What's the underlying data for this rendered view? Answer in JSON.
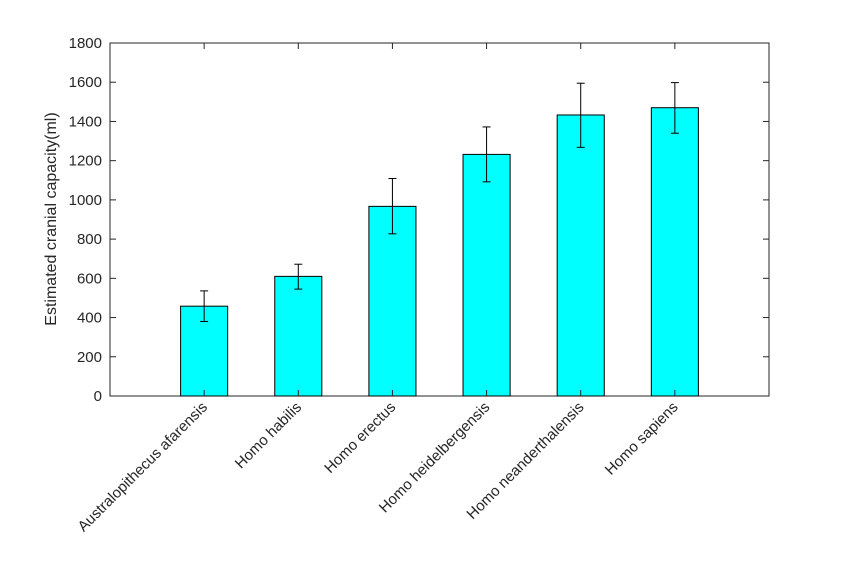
{
  "chart_data": {
    "type": "bar",
    "title": "",
    "xlabel": "",
    "ylabel": "Estimated cranial capacity(ml)",
    "categories": [
      "Australopithecus afarensis",
      "Homo habilis",
      "Homo erectus",
      "Homo heidelbergensis",
      "Homo neanderthalensis",
      "Homo sapiens"
    ],
    "values": [
      458,
      610,
      967,
      1232,
      1433,
      1470
    ],
    "error_low": [
      78,
      65,
      140,
      140,
      165,
      130
    ],
    "error_high": [
      78,
      62,
      142,
      140,
      162,
      128
    ],
    "ylim": [
      0,
      1800
    ],
    "yticks": [
      0,
      200,
      400,
      600,
      800,
      1000,
      1200,
      1400,
      1600,
      1800
    ],
    "grid": false,
    "legend": "none",
    "bar_color": "#00ffff",
    "edge_color": "#000000"
  }
}
